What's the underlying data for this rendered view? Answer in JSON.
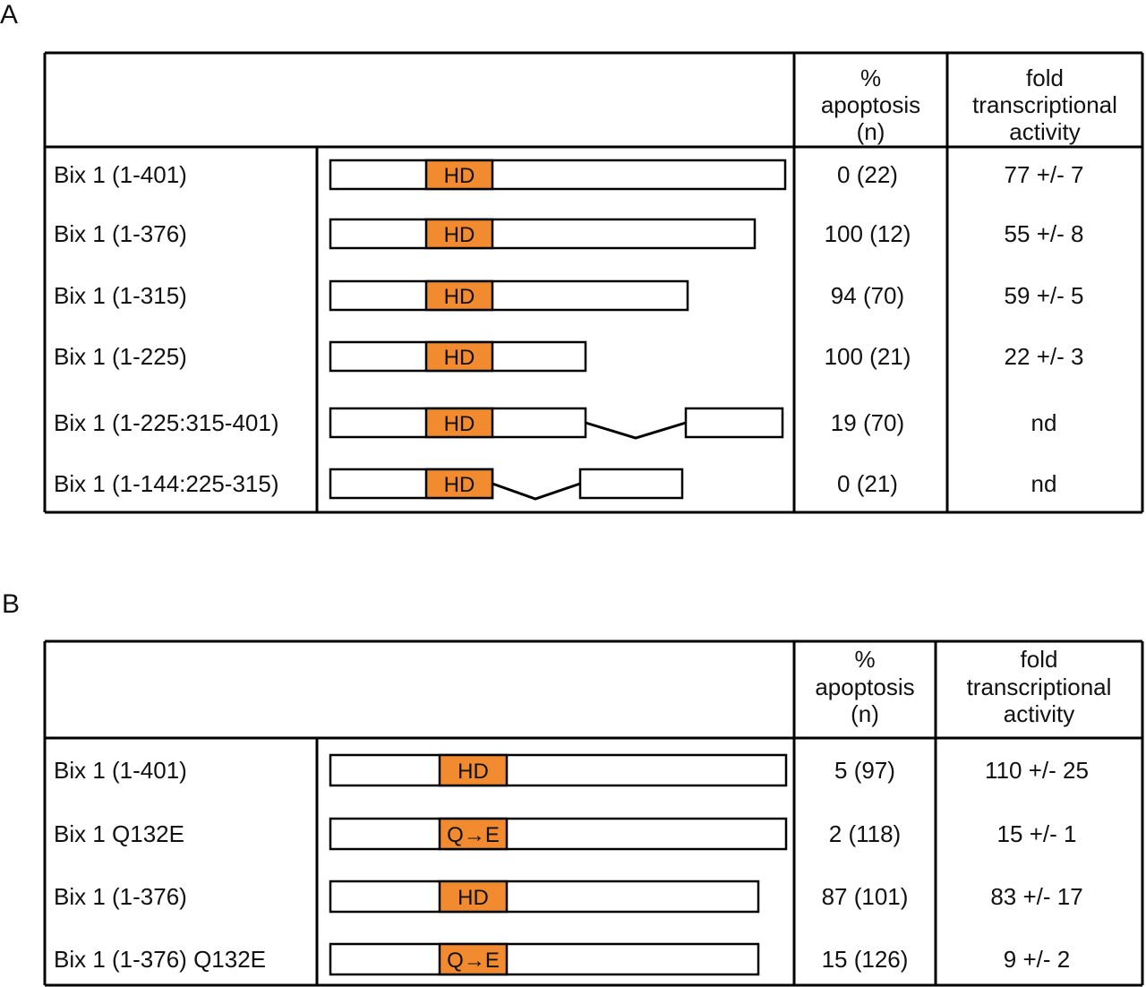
{
  "panels": [
    {
      "letter": "A",
      "header": {
        "apoptosis": [
          "%",
          "apoptosis",
          "(n)"
        ],
        "activity": [
          "fold",
          "transcriptional",
          "activity"
        ]
      },
      "rows": [
        {
          "label": "Bix 1 (1-401)",
          "domain": "HD",
          "end_aa": 401,
          "apoptosis": "0 (22)",
          "activity": "77 +/- 7"
        },
        {
          "label": "Bix 1 (1-376)",
          "domain": "HD",
          "end_aa": 376,
          "apoptosis": "100 (12)",
          "activity": "55 +/- 8"
        },
        {
          "label": "Bix 1 (1-315)",
          "domain": "HD",
          "end_aa": 315,
          "apoptosis": "94 (70)",
          "activity": "59 +/- 5"
        },
        {
          "label": "Bix 1 (1-225)",
          "domain": "HD",
          "end_aa": 225,
          "apoptosis": "100 (21)",
          "activity": "22 +/- 3"
        },
        {
          "label": "Bix 1 (1-225:315-401)",
          "domain": "HD",
          "apoptosis": "19 (70)",
          "activity": "nd"
        },
        {
          "label": "Bix 1 (1-144:225-315)",
          "domain": "HD",
          "apoptosis": "0 (21)",
          "activity": "nd"
        }
      ]
    },
    {
      "letter": "B",
      "header": {
        "apoptosis": [
          "%",
          "apoptosis",
          "(n)"
        ],
        "activity": [
          "fold",
          "transcriptional",
          "activity"
        ]
      },
      "rows": [
        {
          "label": "Bix 1 (1-401)",
          "domain": "HD",
          "apoptosis": "5 (97)",
          "activity": "110 +/- 25"
        },
        {
          "label": "Bix 1 Q132E",
          "domain": "Q→E",
          "apoptosis": "2 (118)",
          "activity": "15 +/- 1"
        },
        {
          "label": "Bix 1 (1-376)",
          "domain": "HD",
          "apoptosis": "87 (101)",
          "activity": "83 +/- 17"
        },
        {
          "label": "Bix 1 (1-376) Q132E",
          "domain": "Q→E",
          "apoptosis": "15 (126)",
          "activity": "9 +/- 2"
        }
      ]
    }
  ],
  "colors": {
    "homeodomain": "#f28a30",
    "border": "#000000",
    "background": "#ffffff"
  }
}
